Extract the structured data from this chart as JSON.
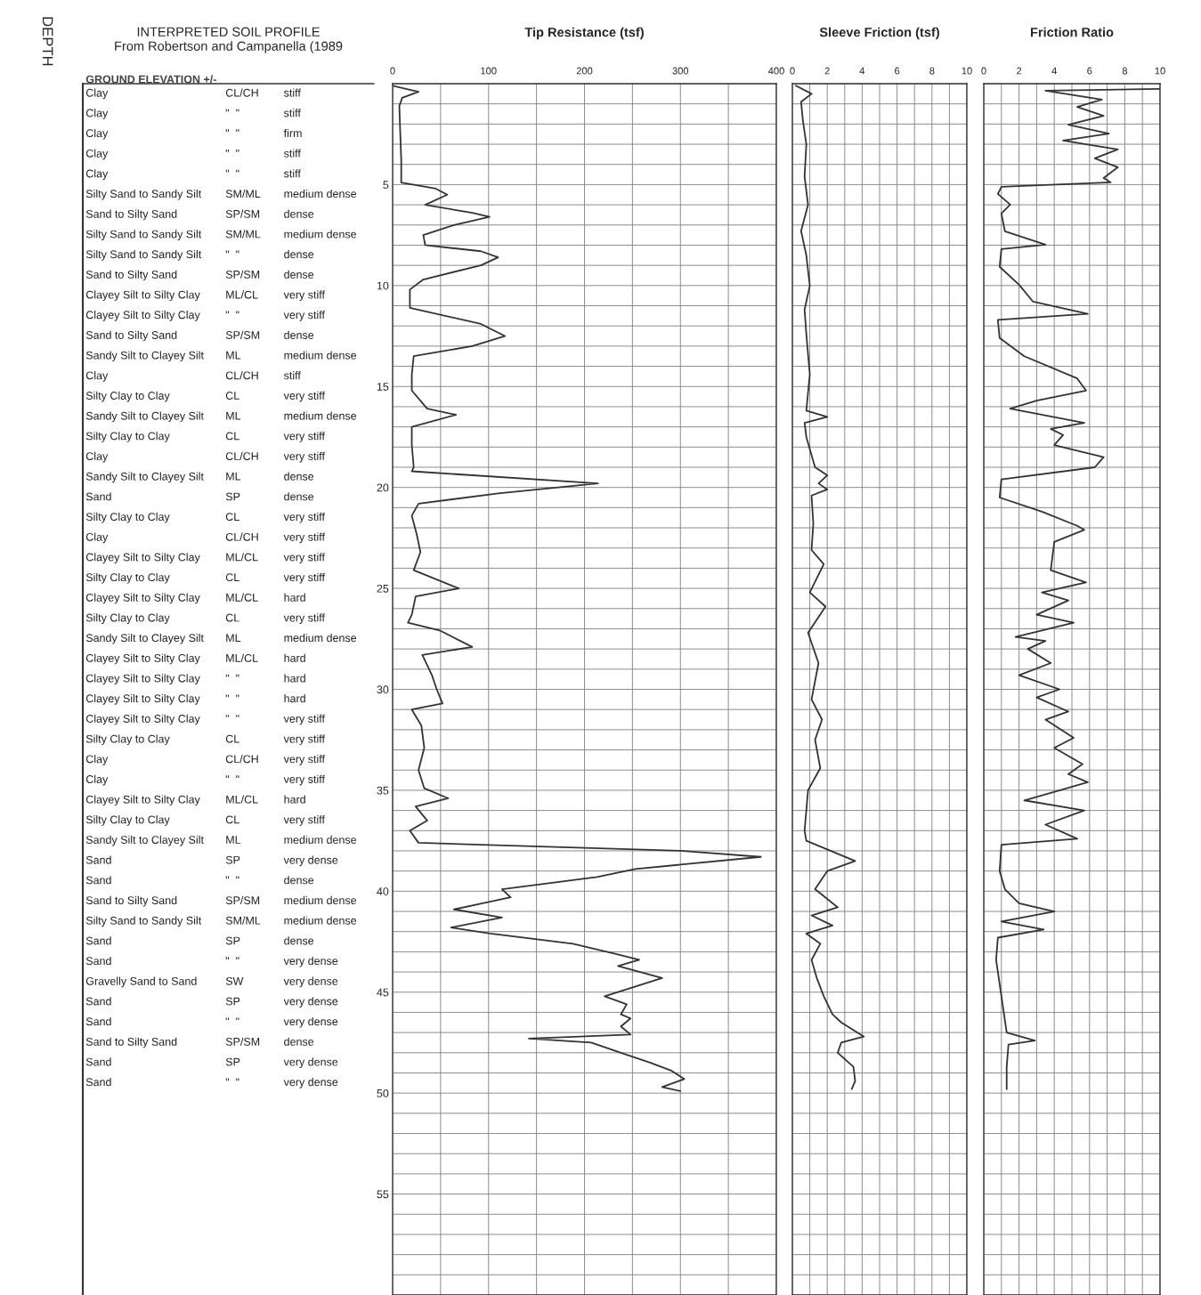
{
  "chart_data": [
    {
      "type": "line",
      "title": "Tip Resistance (tsf)",
      "ylabel": "DEPTH",
      "annotations": [
        "INTERPRETED SOIL PROFILE",
        "From Robertson and Campanella (1989",
        "GROUND ELEVATION +/-",
        "Clay",
        "CL/CH",
        "stiff",
        "Clay",
        "\"  \"",
        "stiff",
        "Clay",
        "\"  \"",
        "firm",
        "Clay",
        "\"  \"",
        "stiff",
        "Clay",
        "\"  \"",
        "stiff",
        "Silty Sand to Sandy Silt",
        "SM/ML",
        "medium dense",
        "Sand to Silty Sand",
        "SP/SM",
        "dense",
        "Silty Sand to Sandy Silt",
        "SM/ML",
        "medium dense",
        "Silty Sand to Sandy Silt",
        "\"  \"",
        "dense",
        "Sand to Silty Sand",
        "SP/SM",
        "dense",
        "Clayey Silt to Silty Clay",
        "ML/CL",
        "very stiff",
        "Clayey Silt to Silty Clay",
        "\"  \"",
        "very stiff",
        "Sand to Silty Sand",
        "SP/SM",
        "dense",
        "Sandy Silt to Clayey Silt",
        "ML",
        "medium dense",
        "Clay",
        "CL/CH",
        "stiff",
        "Silty Clay to Clay",
        "CL",
        "very stiff",
        "Sandy Silt to Clayey Silt",
        "ML",
        "medium dense",
        "Silty Clay to Clay",
        "CL",
        "very stiff",
        "Clay",
        "CL/CH",
        "very stiff",
        "Sandy Silt to Clayey Silt",
        "ML",
        "dense",
        "Sand",
        "SP",
        "dense",
        "Silty Clay to Clay",
        "CL",
        "very stiff",
        "Clay",
        "CL/CH",
        "very stiff",
        "Clayey Silt to Silty Clay",
        "ML/CL",
        "very stiff",
        "Silty Clay to Clay",
        "CL",
        "very stiff",
        "Clayey Silt to Silty Clay",
        "ML/CL",
        "hard",
        "Silty Clay to Clay",
        "CL",
        "very stiff",
        "Sandy Silt to Clayey Silt",
        "ML",
        "medium dense",
        "Clayey Silt to Silty Clay",
        "ML/CL",
        "hard",
        "Clayey Silt to Silty Clay",
        "\"  \"",
        "hard",
        "Clayey Silt to Silty Clay",
        "\"  \"",
        "hard",
        "Clayey Silt to Silty Clay",
        "\"  \"",
        "very stiff",
        "Silty Clay to Clay",
        "CL",
        "very stiff",
        "Clay",
        "CL/CH",
        "very stiff",
        "Clay",
        "\"  \"",
        "very stiff",
        "Clayey Silt to Silty Clay",
        "ML/CL",
        "hard",
        "Silty Clay to Clay",
        "CL",
        "very stiff",
        "Sandy Silt to Clayey Silt",
        "ML",
        "medium dense",
        "Sand",
        "SP",
        "very dense",
        "Sand",
        "\"  \"",
        "dense",
        "Sand to Silty Sand",
        "SP/SM",
        "medium dense",
        "Silty Sand to Sandy Silt",
        "SM/ML",
        "medium dense",
        "Sand",
        "SP",
        "dense",
        "Sand",
        "\"  \"",
        "very dense",
        "Gravelly Sand to Sand",
        "SW",
        "very dense",
        "Sand",
        "SP",
        "very dense",
        "Sand",
        "\"  \"",
        "very dense",
        "Sand to Silty Sand",
        "SP/SM",
        "dense",
        "Sand",
        "SP",
        "very dense",
        "Sand",
        "\"  \"",
        "very dense"
      ],
      "yticks": [
        {
          "value": 0,
          "label": null
        },
        {
          "value": 1,
          "label": null
        },
        {
          "value": 2,
          "label": null
        },
        {
          "value": 3,
          "label": null
        },
        {
          "value": 4,
          "label": null
        },
        5,
        {
          "value": 6,
          "label": null
        },
        {
          "value": 7,
          "label": null
        },
        {
          "value": 8,
          "label": null
        },
        {
          "value": 9,
          "label": null
        },
        10,
        {
          "value": 11,
          "label": null
        },
        {
          "value": 12,
          "label": null
        },
        {
          "value": 13,
          "label": null
        },
        {
          "value": 14,
          "label": null
        },
        15,
        {
          "value": 16,
          "label": null
        },
        {
          "value": 17,
          "label": null
        },
        {
          "value": 18,
          "label": null
        },
        {
          "value": 19,
          "label": null
        },
        20,
        {
          "value": 21,
          "label": null
        },
        {
          "value": 22,
          "label": null
        },
        {
          "value": 23,
          "label": null
        },
        {
          "value": 24,
          "label": null
        },
        25,
        {
          "value": 26,
          "label": null
        },
        {
          "value": 27,
          "label": null
        },
        {
          "value": 28,
          "label": null
        },
        {
          "value": 29,
          "label": null
        },
        30,
        {
          "value": 31,
          "label": null
        },
        {
          "value": 32,
          "label": null
        },
        {
          "value": 33,
          "label": null
        },
        {
          "value": 34,
          "label": null
        },
        35,
        {
          "value": 36,
          "label": null
        },
        {
          "value": 37,
          "label": null
        },
        {
          "value": 38,
          "label": null
        },
        {
          "value": 39,
          "label": null
        },
        40,
        {
          "value": 41,
          "label": null
        },
        {
          "value": 42,
          "label": null
        },
        {
          "value": 43,
          "label": null
        },
        {
          "value": 44,
          "label": null
        },
        45,
        {
          "value": 46,
          "label": null
        },
        {
          "value": 47,
          "label": null
        },
        {
          "value": 48,
          "label": null
        },
        {
          "value": 49,
          "label": null
        },
        50,
        {
          "value": 51,
          "label": null
        },
        {
          "value": 52,
          "label": null
        },
        {
          "value": 53,
          "label": null
        },
        {
          "value": 54,
          "label": null
        },
        55,
        {
          "value": 56,
          "label": null
        },
        {
          "value": 57,
          "label": null
        },
        {
          "value": 58,
          "label": null
        },
        {
          "value": 59,
          "label": null
        },
        {
          "value": 60,
          "label": null
        }
      ],
      "xlim": [
        0,
        400
      ],
      "xticks": [
        0,
        {
          "value": 50,
          "label": null
        },
        100,
        {
          "value": 150,
          "label": null
        },
        200,
        {
          "value": 250,
          "label": null
        },
        300,
        {
          "value": 350,
          "label": null
        },
        400
      ],
      "ylim": [
        60,
        0
      ],
      "grid": true,
      "marker": "none",
      "line_style": "solid",
      "series": [
        {
          "color": "#333333",
          "x": [
            0,
            27,
            10,
            7,
            8,
            9,
            9,
            45,
            57,
            34,
            83,
            101,
            64,
            32,
            34,
            92,
            110,
            92,
            32,
            18,
            18,
            92,
            117,
            83,
            22,
            20,
            20,
            36,
            66,
            20,
            20,
            22,
            20,
            214,
            110,
            27,
            20,
            25,
            29,
            22,
            69,
            24,
            20,
            16,
            50,
            83,
            31,
            41,
            46,
            52,
            20,
            30,
            33,
            27,
            33,
            58,
            24,
            36,
            18,
            27,
            300,
            384,
            253,
            213,
            114,
            123,
            64,
            114,
            61,
            102,
            188,
            232,
            257,
            235,
            281,
            221,
            244,
            238,
            248,
            238,
            248,
            142,
            207,
            238,
            269,
            291,
            304,
            281,
            300
          ],
          "values": [
            0.1,
            0.4,
            0.7,
            1.1,
            2.5,
            3.8,
            4.9,
            5.2,
            5.5,
            6.0,
            6.4,
            6.6,
            7.0,
            7.5,
            8.0,
            8.3,
            8.6,
            9.0,
            9.7,
            10.2,
            11.1,
            11.9,
            12.5,
            13.0,
            13.5,
            14.4,
            15.2,
            16.1,
            16.4,
            17.0,
            17.9,
            19.0,
            19.2,
            19.8,
            20.3,
            20.8,
            21.4,
            22.3,
            23.2,
            24.1,
            25.0,
            25.4,
            26.3,
            26.7,
            27.1,
            27.9,
            28.3,
            29.3,
            30.0,
            30.7,
            31.0,
            31.8,
            32.9,
            34.0,
            34.9,
            35.4,
            35.8,
            36.5,
            37.0,
            37.6,
            38.0,
            38.3,
            38.9,
            39.3,
            39.9,
            40.3,
            40.9,
            41.3,
            41.8,
            42.1,
            42.6,
            43.1,
            43.4,
            43.7,
            44.3,
            45.2,
            45.6,
            46.1,
            46.3,
            46.7,
            47.1,
            47.3,
            47.5,
            48.0,
            48.5,
            48.9,
            49.3,
            49.7,
            49.9
          ]
        }
      ]
    },
    {
      "type": "line",
      "title": "Sleeve Friction (tsf)",
      "yticks": [
        {
          "value": 0,
          "label": null
        },
        {
          "value": 1,
          "label": null
        },
        {
          "value": 2,
          "label": null
        },
        {
          "value": 3,
          "label": null
        },
        {
          "value": 4,
          "label": null
        },
        5,
        {
          "value": 6,
          "label": null
        },
        {
          "value": 7,
          "label": null
        },
        {
          "value": 8,
          "label": null
        },
        {
          "value": 9,
          "label": null
        },
        10,
        {
          "value": 11,
          "label": null
        },
        {
          "value": 12,
          "label": null
        },
        {
          "value": 13,
          "label": null
        },
        {
          "value": 14,
          "label": null
        },
        15,
        {
          "value": 16,
          "label": null
        },
        {
          "value": 17,
          "label": null
        },
        {
          "value": 18,
          "label": null
        },
        {
          "value": 19,
          "label": null
        },
        20,
        {
          "value": 21,
          "label": null
        },
        {
          "value": 22,
          "label": null
        },
        {
          "value": 23,
          "label": null
        },
        {
          "value": 24,
          "label": null
        },
        25,
        {
          "value": 26,
          "label": null
        },
        {
          "value": 27,
          "label": null
        },
        {
          "value": 28,
          "label": null
        },
        {
          "value": 29,
          "label": null
        },
        30,
        {
          "value": 31,
          "label": null
        },
        {
          "value": 32,
          "label": null
        },
        {
          "value": 33,
          "label": null
        },
        {
          "value": 34,
          "label": null
        },
        35,
        {
          "value": 36,
          "label": null
        },
        {
          "value": 37,
          "label": null
        },
        {
          "value": 38,
          "label": null
        },
        {
          "value": 39,
          "label": null
        },
        40,
        {
          "value": 41,
          "label": null
        },
        {
          "value": 42,
          "label": null
        },
        {
          "value": 43,
          "label": null
        },
        {
          "value": 44,
          "label": null
        },
        45,
        {
          "value": 46,
          "label": null
        },
        {
          "value": 47,
          "label": null
        },
        {
          "value": 48,
          "label": null
        },
        {
          "value": 49,
          "label": null
        },
        50,
        {
          "value": 51,
          "label": null
        },
        {
          "value": 52,
          "label": null
        },
        {
          "value": 53,
          "label": null
        },
        {
          "value": 54,
          "label": null
        },
        55,
        {
          "value": 56,
          "label": null
        },
        {
          "value": 57,
          "label": null
        },
        {
          "value": 58,
          "label": null
        },
        {
          "value": 59,
          "label": null
        },
        {
          "value": 60,
          "label": null
        }
      ],
      "xlim": [
        0,
        10
      ],
      "xticks": [
        0,
        {
          "value": 1,
          "label": null
        },
        2,
        {
          "value": 3,
          "label": null
        },
        4,
        {
          "value": 5,
          "label": null
        },
        6,
        {
          "value": 7,
          "label": null
        },
        8,
        {
          "value": 9,
          "label": null
        },
        10
      ],
      "ylim": [
        60,
        0
      ],
      "tick_labels": "x",
      "grid": true,
      "marker": "none",
      "line_style": "solid",
      "series": [
        {
          "color": "#333333",
          "x": [
            0.2,
            1.1,
            0.5,
            0.6,
            0.8,
            0.7,
            0.9,
            0.5,
            0.8,
            1.0,
            0.7,
            0.8,
            1.0,
            0.8,
            2.0,
            0.7,
            0.8,
            1.3,
            2.0,
            1.5,
            2.0,
            1.1,
            1.2,
            1.1,
            1.8,
            1.0,
            1.9,
            0.9,
            1.5,
            1.1,
            1.7,
            1.3,
            1.6,
            0.9,
            0.7,
            0.8,
            3.6,
            2.0,
            1.3,
            2.6,
            1.1,
            2.3,
            0.8,
            1.6,
            1.1,
            1.4,
            1.8,
            2.3,
            2.8,
            4.1,
            2.8,
            2.6,
            3.5,
            3.6,
            3.4
          ],
          "values": [
            0.1,
            0.5,
            0.9,
            1.8,
            3.0,
            4.6,
            6.0,
            7.3,
            8.5,
            10.0,
            11.2,
            12.4,
            14.4,
            16.2,
            16.5,
            16.8,
            17.5,
            19.0,
            19.4,
            19.8,
            20.1,
            20.4,
            21.8,
            23.1,
            23.8,
            25.2,
            25.9,
            27.2,
            28.7,
            30.5,
            31.5,
            32.5,
            33.9,
            35.0,
            37.0,
            37.5,
            38.5,
            39.0,
            39.9,
            40.8,
            41.2,
            41.7,
            42.1,
            42.6,
            43.4,
            44.3,
            45.2,
            46.1,
            46.5,
            47.2,
            47.5,
            48.0,
            48.7,
            49.4,
            49.8
          ]
        }
      ]
    },
    {
      "type": "line",
      "title": "Friction Ratio",
      "yticks": [
        {
          "value": 0,
          "label": null
        },
        {
          "value": 1,
          "label": null
        },
        {
          "value": 2,
          "label": null
        },
        {
          "value": 3,
          "label": null
        },
        {
          "value": 4,
          "label": null
        },
        5,
        {
          "value": 6,
          "label": null
        },
        {
          "value": 7,
          "label": null
        },
        {
          "value": 8,
          "label": null
        },
        {
          "value": 9,
          "label": null
        },
        10,
        {
          "value": 11,
          "label": null
        },
        {
          "value": 12,
          "label": null
        },
        {
          "value": 13,
          "label": null
        },
        {
          "value": 14,
          "label": null
        },
        15,
        {
          "value": 16,
          "label": null
        },
        {
          "value": 17,
          "label": null
        },
        {
          "value": 18,
          "label": null
        },
        {
          "value": 19,
          "label": null
        },
        20,
        {
          "value": 21,
          "label": null
        },
        {
          "value": 22,
          "label": null
        },
        {
          "value": 23,
          "label": null
        },
        {
          "value": 24,
          "label": null
        },
        25,
        {
          "value": 26,
          "label": null
        },
        {
          "value": 27,
          "label": null
        },
        {
          "value": 28,
          "label": null
        },
        {
          "value": 29,
          "label": null
        },
        30,
        {
          "value": 31,
          "label": null
        },
        {
          "value": 32,
          "label": null
        },
        {
          "value": 33,
          "label": null
        },
        {
          "value": 34,
          "label": null
        },
        35,
        {
          "value": 36,
          "label": null
        },
        {
          "value": 37,
          "label": null
        },
        {
          "value": 38,
          "label": null
        },
        {
          "value": 39,
          "label": null
        },
        40,
        {
          "value": 41,
          "label": null
        },
        {
          "value": 42,
          "label": null
        },
        {
          "value": 43,
          "label": null
        },
        {
          "value": 44,
          "label": null
        },
        45,
        {
          "value": 46,
          "label": null
        },
        {
          "value": 47,
          "label": null
        },
        {
          "value": 48,
          "label": null
        },
        {
          "value": 49,
          "label": null
        },
        50,
        {
          "value": 51,
          "label": null
        },
        {
          "value": 52,
          "label": null
        },
        {
          "value": 53,
          "label": null
        },
        {
          "value": 54,
          "label": null
        },
        55,
        {
          "value": 56,
          "label": null
        },
        {
          "value": 57,
          "label": null
        },
        {
          "value": 58,
          "label": null
        },
        {
          "value": 59,
          "label": null
        },
        {
          "value": 60,
          "label": null
        }
      ],
      "xlim": [
        0,
        10
      ],
      "xticks": [
        0,
        {
          "value": 1,
          "label": null
        },
        2,
        {
          "value": 3,
          "label": null
        },
        4,
        {
          "value": 5,
          "label": null
        },
        6,
        {
          "value": 7,
          "label": null
        },
        8,
        {
          "value": 9,
          "label": null
        },
        10
      ],
      "ylim": [
        60,
        0
      ],
      "tick_labels": "x",
      "grid": true,
      "marker": "none",
      "line_style": "solid",
      "series": [
        {
          "color": "#333333",
          "x": [
            10,
            3.5,
            6.7,
            5.3,
            6.8,
            4.8,
            7.1,
            4.5,
            7.6,
            6.3,
            7.6,
            6.8,
            7.2,
            1.0,
            0.8,
            1.5,
            1.0,
            1.2,
            3.5,
            1.0,
            0.9,
            2.0,
            2.8,
            5.9,
            0.8,
            0.9,
            2.3,
            5.3,
            5.8,
            3.0,
            1.5,
            5.7,
            3.8,
            4.5,
            4.0,
            6.8,
            6.3,
            1.0,
            0.9,
            3.3,
            5.3,
            5.7,
            4.0,
            3.8,
            5.8,
            3.3,
            4.8,
            3.0,
            5.1,
            1.8,
            3.5,
            2.5,
            3.8,
            2.0,
            4.3,
            3.0,
            4.8,
            3.5,
            5.1,
            4.0,
            5.6,
            4.8,
            5.9,
            2.3,
            5.7,
            3.5,
            5.3,
            1.0,
            0.9,
            1.2,
            2.0,
            4.0,
            1.0,
            3.4,
            0.8,
            0.7,
            1.0,
            1.3,
            2.9,
            1.4,
            1.3,
            1.3
          ],
          "values": [
            0.26,
            0.35,
            0.79,
            1.15,
            1.59,
            2.03,
            2.47,
            2.82,
            3.26,
            3.7,
            4.14,
            4.67,
            4.89,
            5.11,
            5.46,
            5.99,
            6.43,
            7.31,
            7.97,
            8.19,
            9.07,
            9.96,
            10.8,
            11.4,
            11.7,
            12.6,
            13.5,
            14.6,
            15.2,
            15.7,
            16.1,
            16.8,
            17.1,
            17.4,
            17.9,
            18.5,
            19.0,
            19.6,
            20.5,
            21.2,
            21.9,
            22.1,
            22.7,
            24.1,
            24.7,
            25.2,
            25.6,
            26.3,
            26.7,
            27.4,
            27.6,
            28.0,
            28.7,
            29.3,
            30.0,
            30.4,
            31.1,
            31.5,
            32.4,
            32.9,
            33.7,
            34.2,
            34.6,
            35.5,
            36.0,
            36.7,
            37.4,
            37.7,
            39.0,
            39.9,
            40.6,
            41.0,
            41.5,
            41.9,
            42.3,
            43.4,
            45.2,
            47.0,
            47.4,
            47.6,
            48.7,
            49.8
          ]
        }
      ]
    }
  ]
}
